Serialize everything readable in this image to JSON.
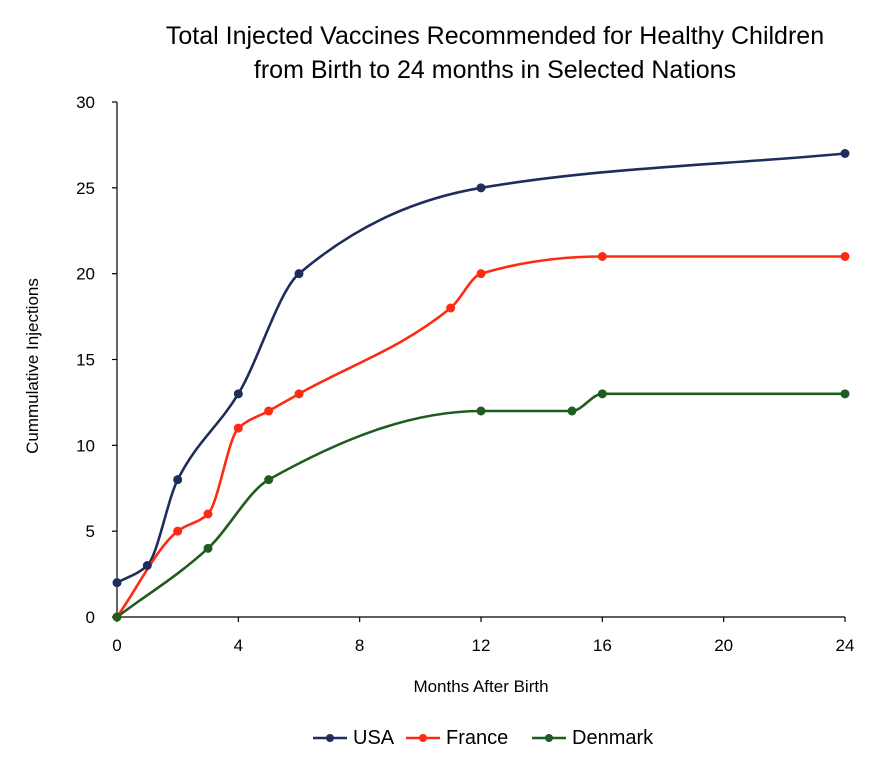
{
  "chart_data": {
    "type": "line",
    "title_lines": [
      "Total Injected Vaccines Recommended for Healthy Children",
      "from Birth to 24 months in Selected Nations"
    ],
    "xlabel": "Months After Birth",
    "ylabel": "Cummulative Injections",
    "xlim": [
      0,
      24
    ],
    "ylim": [
      0,
      30
    ],
    "x_ticks": [
      0,
      4,
      8,
      12,
      16,
      20,
      24
    ],
    "y_ticks": [
      0,
      5,
      10,
      15,
      20,
      25,
      30
    ],
    "grid": false,
    "legend_position": "bottom",
    "smoothed": true,
    "series": [
      {
        "name": "USA",
        "color": "#1f2d5c",
        "x": [
          0,
          1,
          2,
          4,
          6,
          12,
          24
        ],
        "y": [
          2,
          3,
          8,
          13,
          20,
          25,
          27
        ]
      },
      {
        "name": "France",
        "color": "#ff2a12",
        "x": [
          0,
          2,
          3,
          4,
          5,
          6,
          11,
          12,
          16,
          24
        ],
        "y": [
          0,
          5,
          6,
          11,
          12,
          13,
          18,
          20,
          21,
          21
        ]
      },
      {
        "name": "Denmark",
        "color": "#1f5c1f",
        "x": [
          0,
          3,
          5,
          12,
          15,
          16,
          24
        ],
        "y": [
          0,
          4,
          8,
          12,
          12,
          13,
          13
        ]
      }
    ]
  }
}
